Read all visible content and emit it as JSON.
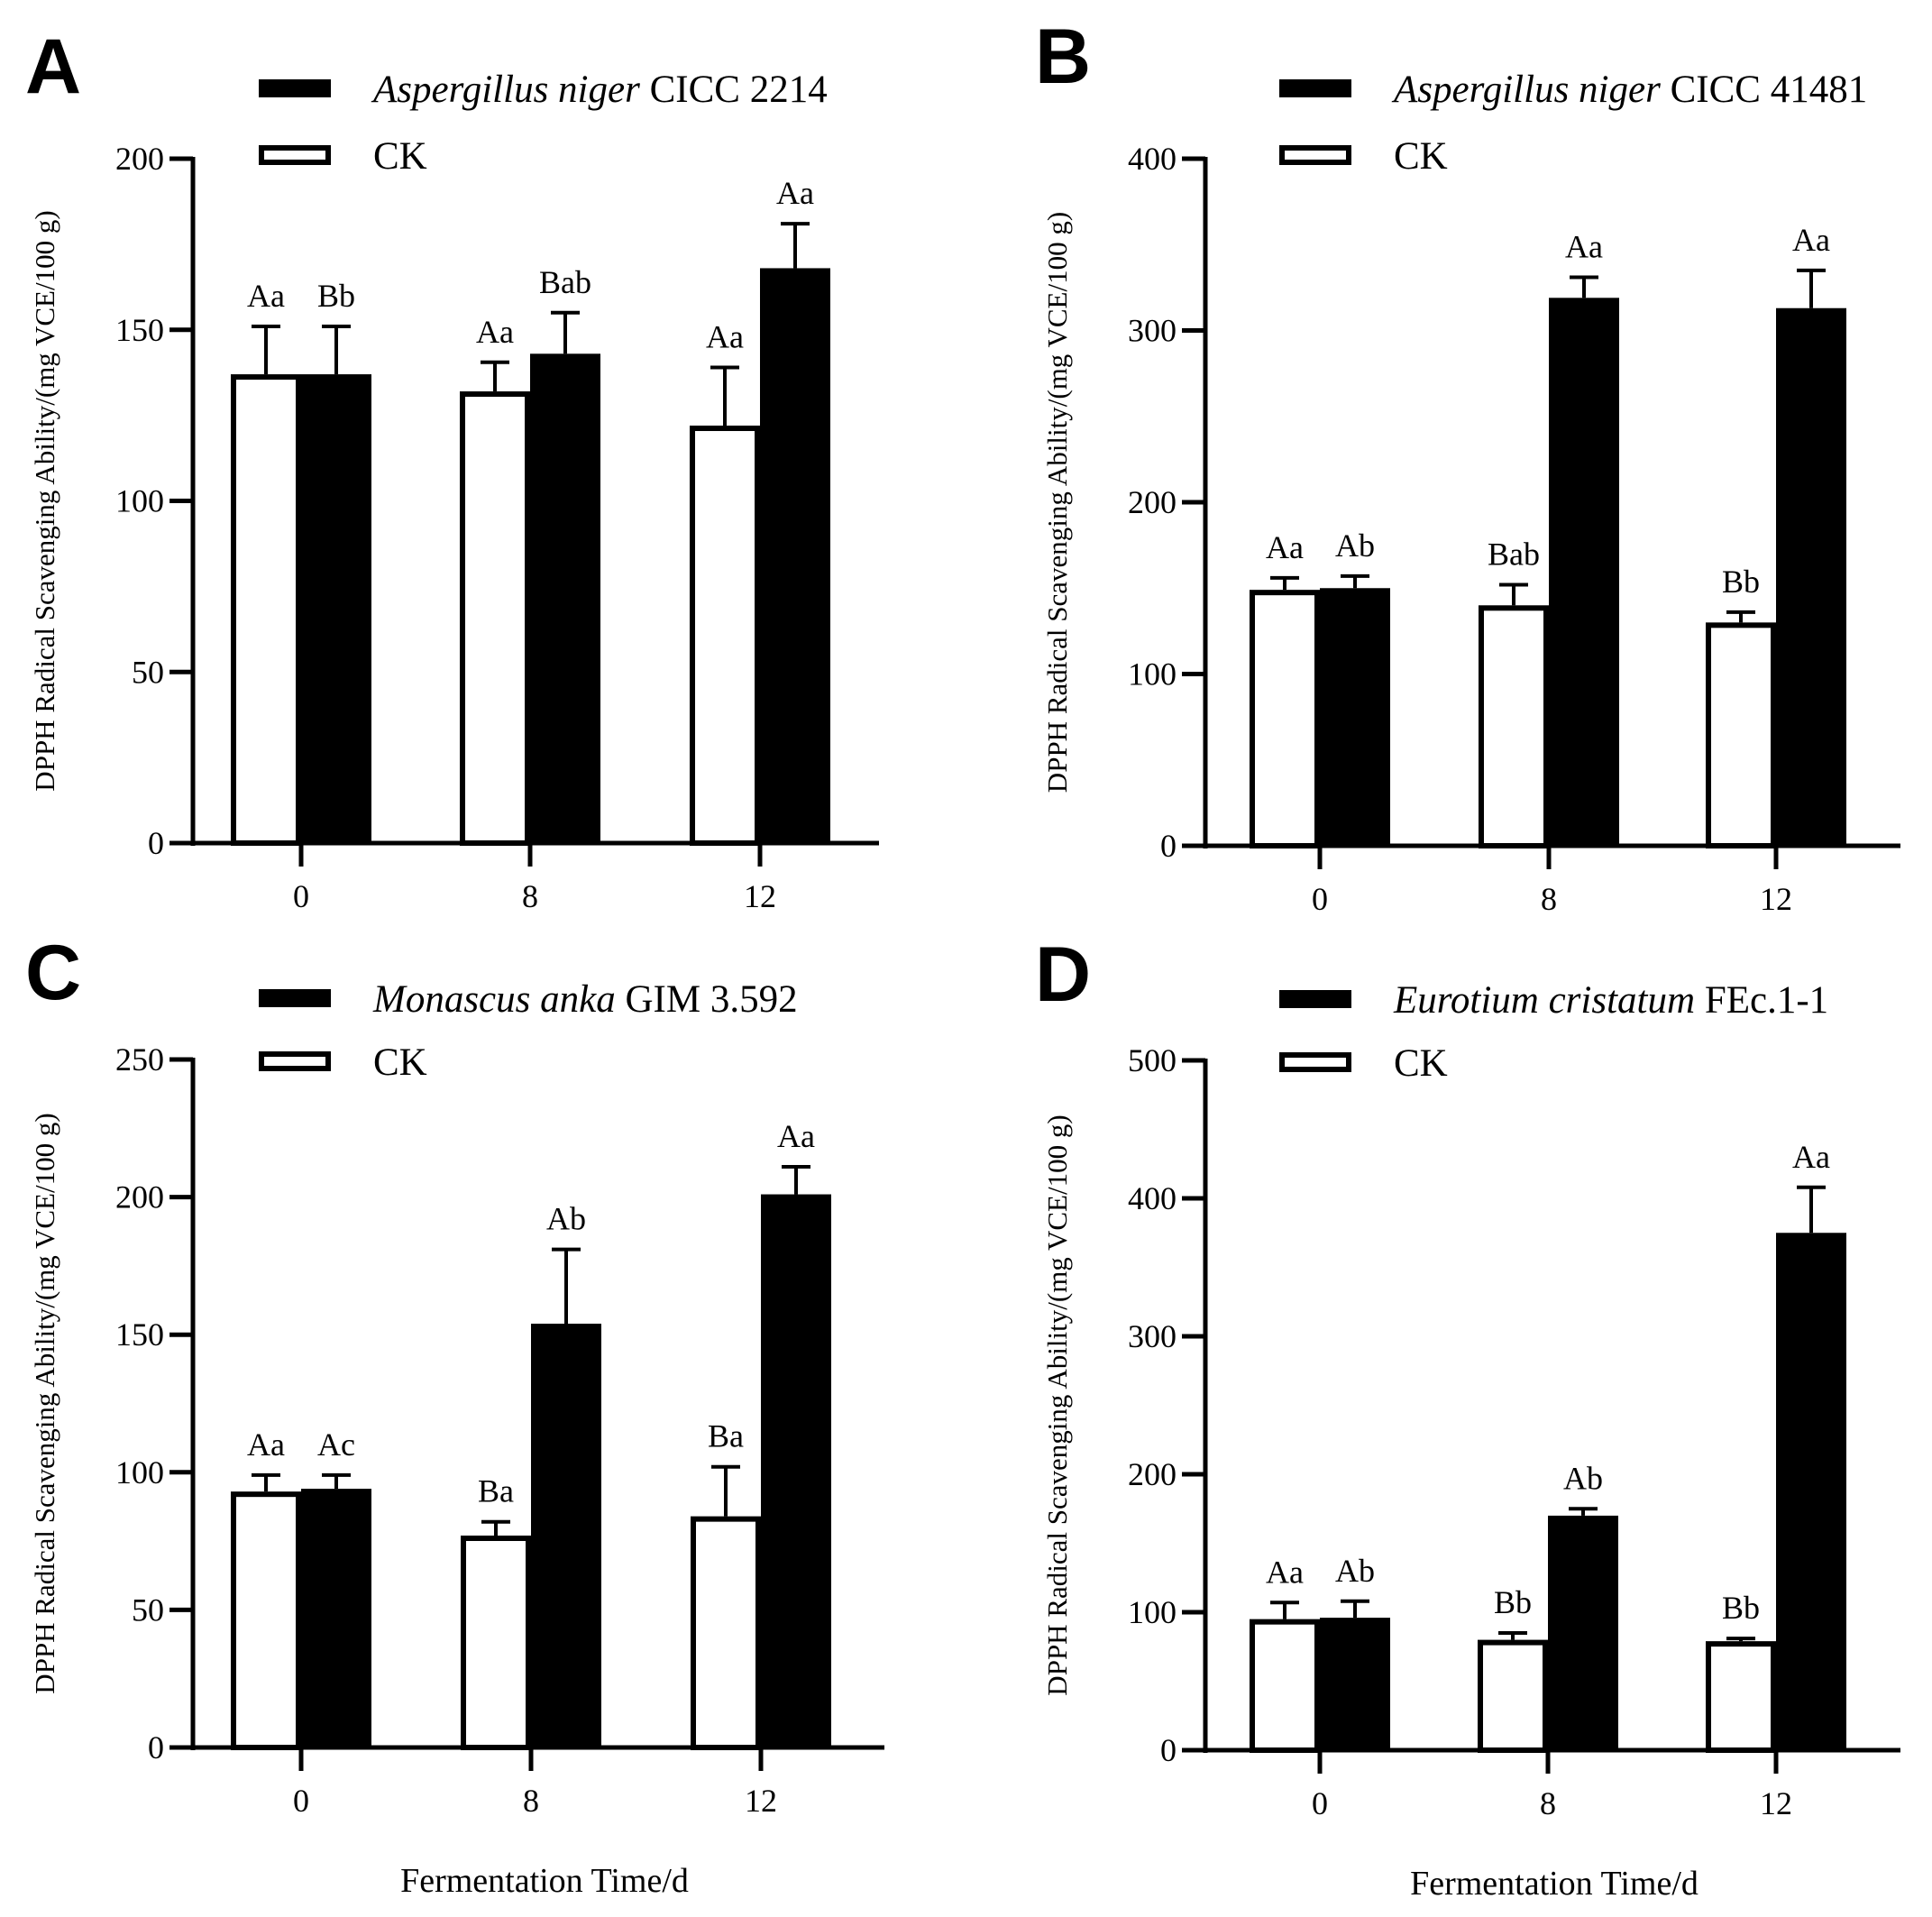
{
  "xlabel": "Fermentation Time/d",
  "chart_data": [
    {
      "panel": "A",
      "type": "bar",
      "ylabel": "DPPH Radical Scavenging Ability/(mg VCE/100 g)",
      "ylim": [
        0,
        200
      ],
      "yticks": [
        0,
        50,
        100,
        150,
        200
      ],
      "categories": [
        "0",
        "8",
        "12"
      ],
      "legend": [
        {
          "species": "Aspergillus niger",
          "strain": " CICC 2214",
          "fill": "#000000"
        },
        {
          "species": "",
          "strain": "CK",
          "fill": "#ffffff"
        }
      ],
      "series": [
        {
          "name": "CK",
          "values": [
            137,
            132,
            122
          ],
          "errors": [
            14,
            8.5,
            17
          ],
          "labels": [
            "Aa",
            "Aa",
            "Aa"
          ]
        },
        {
          "name": "Aspergillus niger CICC 2214",
          "values": [
            137,
            143,
            168
          ],
          "errors": [
            14,
            12,
            13
          ],
          "labels": [
            "Bb",
            "Bab",
            "Aa"
          ]
        }
      ]
    },
    {
      "panel": "B",
      "type": "bar",
      "ylabel": "DPPH Radical Scavenging Ability/(mg VCE/100 g)",
      "ylim": [
        0,
        400
      ],
      "yticks": [
        0,
        100,
        200,
        300,
        400
      ],
      "categories": [
        "0",
        "8",
        "12"
      ],
      "legend": [
        {
          "species": "Aspergillus niger",
          "strain": " CICC 41481",
          "fill": "#000000"
        },
        {
          "species": "",
          "strain": "CK",
          "fill": "#ffffff"
        }
      ],
      "series": [
        {
          "name": "CK",
          "values": [
            149,
            140,
            130
          ],
          "errors": [
            7,
            12,
            6
          ],
          "labels": [
            "Aa",
            "Bab",
            "Bb"
          ]
        },
        {
          "name": "Aspergillus niger CICC 41481",
          "values": [
            150,
            319,
            313
          ],
          "errors": [
            7,
            12,
            22
          ],
          "labels": [
            "Ab",
            "Aa",
            "Aa"
          ]
        }
      ]
    },
    {
      "panel": "C",
      "type": "bar",
      "ylabel": "DPPH Radical Scavenging Ability/(mg VCE/100 g)",
      "ylim": [
        0,
        250
      ],
      "yticks": [
        0,
        50,
        100,
        150,
        200,
        250
      ],
      "categories": [
        "0",
        "8",
        "12"
      ],
      "legend": [
        {
          "species": "Monascus anka",
          "strain": " GIM 3.592",
          "fill": "#000000"
        },
        {
          "species": "",
          "strain": "CK",
          "fill": "#ffffff"
        }
      ],
      "series": [
        {
          "name": "CK",
          "values": [
            93,
            77,
            84
          ],
          "errors": [
            6,
            5,
            18
          ],
          "labels": [
            "Aa",
            "Ba",
            "Ba"
          ]
        },
        {
          "name": "Monascus anka GIM 3.592",
          "values": [
            94,
            154,
            201
          ],
          "errors": [
            5,
            27,
            10
          ],
          "labels": [
            "Ac",
            "Ab",
            "Aa"
          ]
        }
      ]
    },
    {
      "panel": "D",
      "type": "bar",
      "ylabel": "DPPH Radical Scavenging Ability/(mg VCE/100 g)",
      "ylim": [
        0,
        500
      ],
      "yticks": [
        0,
        100,
        200,
        300,
        400,
        500
      ],
      "categories": [
        "0",
        "8",
        "12"
      ],
      "legend": [
        {
          "species": "Eurotium cristatum",
          "strain": " FEc.1-1",
          "fill": "#000000"
        },
        {
          "species": "",
          "strain": "CK",
          "fill": "#ffffff"
        }
      ],
      "series": [
        {
          "name": "CK",
          "values": [
            95,
            80,
            79
          ],
          "errors": [
            12,
            5,
            2
          ],
          "labels": [
            "Aa",
            "Bb",
            "Bb"
          ]
        },
        {
          "name": "Eurotium cristatum FEc.1-1",
          "values": [
            96,
            170,
            375
          ],
          "errors": [
            12,
            5,
            33
          ],
          "labels": [
            "Ab",
            "Ab",
            "Aa"
          ]
        }
      ]
    }
  ]
}
